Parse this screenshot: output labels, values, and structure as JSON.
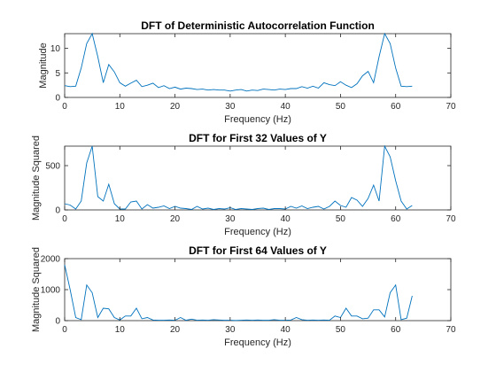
{
  "figure": {
    "line_color": "#0072BD",
    "axis_color": "#262626"
  },
  "chart_data": [
    {
      "type": "line",
      "title": "DFT of Deterministic Autocorrelation Function",
      "xlabel": "Frequency (Hz)",
      "ylabel": "Magnitude",
      "xlim": [
        0,
        70
      ],
      "ylim": [
        0,
        13
      ],
      "xticks": [
        0,
        10,
        20,
        30,
        40,
        50,
        60,
        70
      ],
      "yticks": [
        0,
        5,
        10
      ],
      "grid": false,
      "series": [
        {
          "x": [
            0,
            1,
            2,
            3,
            4,
            5,
            6,
            7,
            8,
            9,
            10,
            11,
            12,
            13,
            14,
            15,
            16,
            17,
            18,
            19,
            20,
            21,
            22,
            23,
            24,
            25,
            26,
            27,
            28,
            29,
            30,
            31,
            32,
            33,
            34,
            35,
            36,
            37,
            38,
            39,
            40,
            41,
            42,
            43,
            44,
            45,
            46,
            47,
            48,
            49,
            50,
            51,
            52,
            53,
            54,
            55,
            56,
            57,
            58,
            59,
            60,
            61,
            62,
            63
          ],
          "y": [
            2.4,
            2.2,
            2.3,
            6.0,
            11.0,
            13.0,
            8.3,
            3.0,
            6.7,
            5.2,
            3.0,
            2.3,
            2.9,
            3.5,
            2.2,
            2.5,
            2.9,
            2.0,
            2.4,
            1.8,
            2.1,
            1.7,
            1.9,
            1.8,
            1.6,
            1.7,
            1.5,
            1.6,
            1.5,
            1.5,
            1.3,
            1.5,
            1.6,
            1.3,
            1.5,
            1.4,
            1.7,
            1.6,
            1.5,
            1.7,
            1.6,
            1.8,
            1.8,
            2.2,
            1.9,
            2.3,
            1.9,
            3.0,
            2.6,
            2.4,
            3.2,
            2.5,
            2.0,
            2.8,
            4.4,
            5.3,
            3.0,
            8.3,
            13.0,
            11.0,
            6.0,
            2.3,
            2.2,
            2.3
          ]
        }
      ]
    },
    {
      "type": "line",
      "title": "DFT for First 32 Values of Y",
      "xlabel": "Frequency (Hz)",
      "ylabel": "Magnitude Squared",
      "xlim": [
        0,
        70
      ],
      "ylim": [
        0,
        720
      ],
      "xticks": [
        0,
        10,
        20,
        30,
        40,
        50,
        60,
        70
      ],
      "yticks": [
        0,
        500
      ],
      "grid": false,
      "series": [
        {
          "x": [
            0,
            1,
            2,
            3,
            4,
            5,
            6,
            7,
            8,
            9,
            10,
            11,
            12,
            13,
            14,
            15,
            16,
            17,
            18,
            19,
            20,
            21,
            22,
            23,
            24,
            25,
            26,
            27,
            28,
            29,
            30,
            31,
            32,
            33,
            34,
            35,
            36,
            37,
            38,
            39,
            40,
            41,
            42,
            43,
            44,
            45,
            46,
            47,
            48,
            49,
            50,
            51,
            52,
            53,
            54,
            55,
            56,
            57,
            58,
            59,
            60,
            61,
            62,
            63
          ],
          "y": [
            70,
            55,
            10,
            100,
            530,
            720,
            150,
            100,
            290,
            70,
            10,
            10,
            90,
            100,
            10,
            60,
            20,
            30,
            45,
            15,
            40,
            20,
            15,
            5,
            40,
            10,
            20,
            5,
            15,
            10,
            25,
            5,
            15,
            10,
            5,
            15,
            20,
            5,
            15,
            15,
            10,
            40,
            20,
            45,
            15,
            30,
            40,
            10,
            40,
            100,
            50,
            30,
            140,
            110,
            40,
            130,
            280,
            100,
            720,
            600,
            330,
            100,
            10,
            50
          ]
        }
      ]
    },
    {
      "type": "line",
      "title": "DFT for First 64 Values of Y",
      "xlabel": "Frequency (Hz)",
      "ylabel": "Magnitude Squared",
      "xlim": [
        0,
        70
      ],
      "ylim": [
        0,
        2000
      ],
      "xticks": [
        0,
        10,
        20,
        30,
        40,
        50,
        60,
        70
      ],
      "yticks": [
        0,
        1000,
        2000
      ],
      "grid": false,
      "series": [
        {
          "x": [
            0,
            1,
            2,
            3,
            4,
            5,
            6,
            7,
            8,
            9,
            10,
            11,
            12,
            13,
            14,
            15,
            16,
            17,
            18,
            19,
            20,
            21,
            22,
            23,
            24,
            25,
            26,
            27,
            28,
            29,
            30,
            31,
            32,
            33,
            34,
            35,
            36,
            37,
            38,
            39,
            40,
            41,
            42,
            43,
            44,
            45,
            46,
            47,
            48,
            49,
            50,
            51,
            52,
            53,
            54,
            55,
            56,
            57,
            58,
            59,
            60,
            61,
            62,
            63
          ],
          "y": [
            1800,
            1000,
            100,
            30,
            1150,
            900,
            100,
            400,
            380,
            100,
            20,
            150,
            150,
            400,
            60,
            100,
            20,
            10,
            10,
            20,
            10,
            100,
            10,
            50,
            10,
            20,
            10,
            30,
            20,
            10,
            10,
            5,
            10,
            20,
            10,
            20,
            10,
            10,
            30,
            10,
            10,
            20,
            100,
            30,
            10,
            20,
            10,
            20,
            10,
            150,
            100,
            400,
            150,
            150,
            60,
            80,
            350,
            350,
            120,
            900,
            1150,
            30,
            80,
            800
          ]
        }
      ]
    }
  ]
}
